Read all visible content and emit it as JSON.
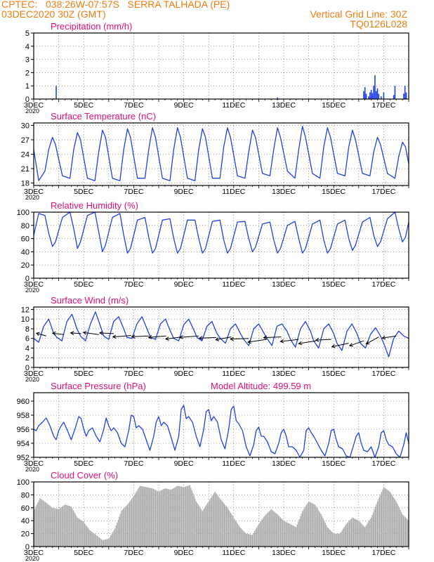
{
  "header": {
    "line1_left": "CPTEC:   038:26W-07:57S   SERRA TALHADA (PE)",
    "line2_left": "03DEC2020 30Z (GMT)",
    "line2_right": "Vertical Grid Line: 30Z",
    "line3_right": "TQ0126L028"
  },
  "colors": {
    "header_text": "#f07c10",
    "panel_title": "#e0107a",
    "series_line": "#2040e8",
    "precip_bars": "#2040e8",
    "cloud_fill": "#a8a8a8",
    "axis": "#000000",
    "grid": "#555555"
  },
  "x_axis": {
    "tick_labels": [
      "3DEC",
      "5DEC",
      "7DEC",
      "9DEC",
      "11DEC",
      "13DEC",
      "15DEC",
      "17DEC"
    ],
    "year_label": "2020",
    "days_span": [
      3,
      18
    ]
  },
  "chart_data": [
    {
      "id": "precip",
      "type": "bar",
      "title": "Precipitation (mm/h)",
      "ylim": [
        0,
        5
      ],
      "yticks": [
        0,
        1,
        2,
        3,
        4,
        5
      ],
      "x": [
        3.8,
        3.9,
        12.75,
        16.2,
        16.25,
        16.3,
        16.4,
        16.45,
        16.5,
        16.55,
        16.6,
        16.65,
        16.7,
        16.75,
        16.8,
        16.9,
        17.0,
        17.4,
        17.45,
        17.8,
        17.85,
        17.9
      ],
      "values": [
        0.05,
        1.0,
        0.12,
        0.6,
        0.9,
        0.4,
        0.2,
        0.5,
        0.7,
        0.45,
        1.0,
        1.8,
        0.6,
        0.8,
        0.4,
        0.2,
        0.5,
        0.3,
        1.0,
        0.4,
        1.0,
        0.5
      ]
    },
    {
      "id": "temp",
      "type": "line",
      "title": "Surface Temperature (nC)",
      "ylim": [
        17.5,
        30.5
      ],
      "yticks": [
        18,
        21,
        24,
        27,
        30
      ],
      "x": [
        3.0,
        3.2,
        3.45,
        3.6,
        3.75,
        3.87,
        4.15,
        4.45,
        4.6,
        4.75,
        4.87,
        5.15,
        5.45,
        5.6,
        5.75,
        5.87,
        6.15,
        6.45,
        6.6,
        6.75,
        6.87,
        7.15,
        7.45,
        7.6,
        7.75,
        7.87,
        8.15,
        8.45,
        8.6,
        8.75,
        8.87,
        9.15,
        9.45,
        9.6,
        9.75,
        9.87,
        10.15,
        10.45,
        10.6,
        10.75,
        10.87,
        11.15,
        11.45,
        11.6,
        11.75,
        11.87,
        12.15,
        12.45,
        12.6,
        12.75,
        12.87,
        13.15,
        13.45,
        13.6,
        13.75,
        13.87,
        14.15,
        14.45,
        14.6,
        14.75,
        14.87,
        15.15,
        15.45,
        15.6,
        15.75,
        15.87,
        16.15,
        16.45,
        16.6,
        16.75,
        16.87,
        17.15,
        17.45,
        17.6,
        17.75,
        17.87,
        18.0
      ],
      "values": [
        25.0,
        18.5,
        20.5,
        25.0,
        27.5,
        26.0,
        19.5,
        19.0,
        25.0,
        28.5,
        27.0,
        19.0,
        18.5,
        24.5,
        29.0,
        27.5,
        19.0,
        18.5,
        25.0,
        29.3,
        27.5,
        19.0,
        19.0,
        25.0,
        29.5,
        27.5,
        19.0,
        18.5,
        25.0,
        29.5,
        27.5,
        19.0,
        18.5,
        25.0,
        29.3,
        27.5,
        19.0,
        19.0,
        25.5,
        29.5,
        27.5,
        19.5,
        19.0,
        24.5,
        29.0,
        27.5,
        20.0,
        19.5,
        25.0,
        29.5,
        27.5,
        20.5,
        19.0,
        25.0,
        29.8,
        27.5,
        20.0,
        19.0,
        25.5,
        29.5,
        27.5,
        20.0,
        19.5,
        25.5,
        29.0,
        27.0,
        20.0,
        19.5,
        24.5,
        27.5,
        26.0,
        20.0,
        19.0,
        23.5,
        26.5,
        25.5,
        22.0
      ]
    },
    {
      "id": "rh",
      "type": "line",
      "title": "Relative Humidity (%)",
      "ylim": [
        0,
        100
      ],
      "yticks": [
        0,
        20,
        40,
        60,
        80,
        100
      ],
      "x": [
        3.0,
        3.2,
        3.45,
        3.6,
        3.75,
        3.87,
        4.15,
        4.45,
        4.6,
        4.75,
        4.87,
        5.15,
        5.45,
        5.6,
        5.75,
        5.87,
        6.15,
        6.45,
        6.6,
        6.75,
        6.87,
        7.15,
        7.45,
        7.6,
        7.75,
        7.87,
        8.15,
        8.45,
        8.6,
        8.75,
        8.87,
        9.15,
        9.45,
        9.6,
        9.75,
        9.87,
        10.15,
        10.45,
        10.6,
        10.75,
        10.87,
        11.15,
        11.45,
        11.6,
        11.75,
        11.87,
        12.15,
        12.45,
        12.6,
        12.75,
        12.87,
        13.15,
        13.45,
        13.6,
        13.75,
        13.87,
        14.15,
        14.45,
        14.6,
        14.75,
        14.87,
        15.15,
        15.45,
        15.6,
        15.75,
        15.87,
        16.15,
        16.45,
        16.6,
        16.75,
        16.87,
        17.15,
        17.45,
        17.6,
        17.75,
        17.87,
        18.0
      ],
      "values": [
        65.0,
        98.0,
        95.0,
        68.0,
        48.0,
        55.0,
        92.0,
        100.0,
        75.0,
        45.0,
        55.0,
        95.0,
        100.0,
        70.0,
        40.0,
        50.0,
        92.0,
        98.0,
        65.0,
        38.0,
        45.0,
        88.0,
        92.0,
        62.0,
        38.0,
        45.0,
        88.0,
        90.0,
        60.0,
        38.0,
        45.0,
        88.0,
        88.0,
        60.0,
        38.0,
        45.0,
        86.0,
        88.0,
        58.0,
        38.0,
        45.0,
        85.0,
        86.0,
        60.0,
        40.0,
        47.0,
        82.0,
        85.0,
        58.0,
        38.0,
        45.0,
        80.0,
        86.0,
        60.0,
        38.0,
        45.0,
        82.0,
        88.0,
        58.0,
        38.0,
        45.0,
        82.0,
        88.0,
        60.0,
        42.0,
        50.0,
        85.0,
        92.0,
        65.0,
        48.0,
        55.0,
        90.0,
        100.0,
        75.0,
        55.0,
        62.0,
        85.0
      ]
    },
    {
      "id": "wind",
      "type": "line",
      "title": "Surface Wind (m/s)",
      "ylim": [
        0,
        12.5
      ],
      "yticks": [
        0,
        2,
        4,
        6,
        8,
        10,
        12
      ],
      "x": [
        3.0,
        3.2,
        3.4,
        3.6,
        3.8,
        3.93,
        4.13,
        4.33,
        4.53,
        4.73,
        4.87,
        5.07,
        5.27,
        5.47,
        5.67,
        5.8,
        6.0,
        6.2,
        6.4,
        6.6,
        6.73,
        6.93,
        7.13,
        7.33,
        7.53,
        7.67,
        7.87,
        8.07,
        8.27,
        8.47,
        8.6,
        8.8,
        9.0,
        9.2,
        9.4,
        9.53,
        9.73,
        9.93,
        10.13,
        10.33,
        10.47,
        10.67,
        10.87,
        11.07,
        11.27,
        11.4,
        11.6,
        11.8,
        12.0,
        12.2,
        12.33,
        12.53,
        12.73,
        12.93,
        13.13,
        13.27,
        13.47,
        13.67,
        13.87,
        14.07,
        14.2,
        14.4,
        14.6,
        14.8,
        15.0,
        15.13,
        15.33,
        15.53,
        15.73,
        15.93,
        16.07,
        16.27,
        16.47,
        16.67,
        16.87,
        17.0,
        17.2,
        17.4,
        17.6,
        17.8,
        18.0
      ],
      "values": [
        6.0,
        5.2,
        8.5,
        10.0,
        7.0,
        6.2,
        5.5,
        9.5,
        11.0,
        8.0,
        6.5,
        5.5,
        9.0,
        11.5,
        8.5,
        6.5,
        5.8,
        9.5,
        10.5,
        8.0,
        6.2,
        6.0,
        9.0,
        10.5,
        8.0,
        6.2,
        5.8,
        9.0,
        10.0,
        7.5,
        6.0,
        5.5,
        8.8,
        10.0,
        7.8,
        6.2,
        5.5,
        8.5,
        9.5,
        7.0,
        6.0,
        5.0,
        8.0,
        9.0,
        7.0,
        5.8,
        4.5,
        8.0,
        9.0,
        7.2,
        6.0,
        4.5,
        8.5,
        9.0,
        7.5,
        5.8,
        4.2,
        8.0,
        9.5,
        7.5,
        5.5,
        4.0,
        8.0,
        9.0,
        7.0,
        5.0,
        3.5,
        7.5,
        9.0,
        7.0,
        5.0,
        4.0,
        6.8,
        8.2,
        6.5,
        5.0,
        2.2,
        6.0,
        7.5,
        6.5,
        6.0
      ],
      "vectors": [
        {
          "x": 3.5,
          "y": 6.5,
          "u": -14,
          "v": -4
        },
        {
          "x": 4.2,
          "y": 6.8,
          "u": -16,
          "v": -2
        },
        {
          "x": 4.9,
          "y": 7.0,
          "u": -15,
          "v": -1
        },
        {
          "x": 5.6,
          "y": 6.8,
          "u": -22,
          "v": -3
        },
        {
          "x": 6.2,
          "y": 7.0,
          "u": -20,
          "v": -1
        },
        {
          "x": 6.9,
          "y": 6.6,
          "u": -26,
          "v": 2
        },
        {
          "x": 7.6,
          "y": 6.5,
          "u": -24,
          "v": 1
        },
        {
          "x": 8.3,
          "y": 6.5,
          "u": -25,
          "v": 2
        },
        {
          "x": 8.9,
          "y": 6.3,
          "u": -22,
          "v": 3
        },
        {
          "x": 9.6,
          "y": 6.5,
          "u": -27,
          "v": 2
        },
        {
          "x": 10.3,
          "y": 6.2,
          "u": -24,
          "v": 1
        },
        {
          "x": 10.9,
          "y": 6.3,
          "u": -22,
          "v": 4
        },
        {
          "x": 11.6,
          "y": 6.0,
          "u": -26,
          "v": 1
        },
        {
          "x": 12.3,
          "y": 5.8,
          "u": -26,
          "v": 4
        },
        {
          "x": 12.9,
          "y": 6.3,
          "u": -25,
          "v": 1
        },
        {
          "x": 13.6,
          "y": 5.8,
          "u": -26,
          "v": 3
        },
        {
          "x": 14.3,
          "y": 5.5,
          "u": -25,
          "v": 4
        },
        {
          "x": 14.9,
          "y": 5.8,
          "u": -22,
          "v": 1
        },
        {
          "x": 15.6,
          "y": 5.0,
          "u": -24,
          "v": 5
        },
        {
          "x": 16.2,
          "y": 5.5,
          "u": -20,
          "v": 7
        },
        {
          "x": 16.8,
          "y": 6.3,
          "u": -18,
          "v": 10
        },
        {
          "x": 17.5,
          "y": 6.5,
          "u": -20,
          "v": 3
        }
      ]
    },
    {
      "id": "pres",
      "type": "line",
      "title": "Surface Pressure (hPa)",
      "annotation": "Model Altitude: 499.59  m",
      "ylim": [
        952,
        961.2
      ],
      "yticks": [
        952,
        954,
        956,
        958,
        960
      ],
      "x": [
        3.0,
        3.1,
        3.2,
        3.35,
        3.5,
        3.65,
        3.8,
        3.9,
        4.0,
        4.1,
        4.2,
        4.35,
        4.5,
        4.65,
        4.8,
        4.9,
        5.0,
        5.1,
        5.2,
        5.35,
        5.5,
        5.65,
        5.8,
        5.9,
        6.0,
        6.1,
        6.2,
        6.35,
        6.5,
        6.65,
        6.8,
        6.9,
        7.0,
        7.1,
        7.2,
        7.35,
        7.5,
        7.65,
        7.8,
        7.9,
        8.0,
        8.1,
        8.2,
        8.35,
        8.5,
        8.65,
        8.8,
        8.9,
        9.0,
        9.1,
        9.2,
        9.35,
        9.5,
        9.65,
        9.8,
        9.9,
        10.0,
        10.1,
        10.2,
        10.35,
        10.5,
        10.65,
        10.8,
        10.9,
        11.0,
        11.1,
        11.2,
        11.35,
        11.5,
        11.65,
        11.8,
        11.9,
        12.0,
        12.1,
        12.2,
        12.35,
        12.5,
        12.65,
        12.8,
        12.9,
        13.0,
        13.1,
        13.2,
        13.35,
        13.5,
        13.65,
        13.8,
        13.9,
        14.0,
        14.1,
        14.2,
        14.35,
        14.5,
        14.65,
        14.8,
        14.9,
        15.0,
        15.1,
        15.2,
        15.35,
        15.5,
        15.65,
        15.8,
        15.9,
        16.0,
        16.1,
        16.2,
        16.35,
        16.5,
        16.65,
        16.8,
        16.9,
        17.0,
        17.1,
        17.2,
        17.35,
        17.5,
        17.65,
        17.8,
        17.9,
        18.0
      ],
      "values": [
        956.0,
        955.8,
        956.5,
        957.0,
        957.6,
        956.5,
        955.0,
        954.5,
        955.8,
        956.5,
        957.0,
        955.8,
        954.5,
        956.0,
        957.8,
        957.5,
        956.0,
        955.0,
        955.8,
        956.2,
        955.0,
        954.2,
        956.0,
        957.6,
        956.5,
        955.8,
        956.2,
        955.5,
        954.0,
        953.5,
        955.8,
        958.0,
        957.8,
        956.2,
        956.5,
        956.0,
        954.5,
        953.0,
        955.0,
        957.0,
        957.8,
        956.5,
        957.0,
        956.5,
        954.8,
        953.0,
        955.0,
        958.8,
        959.4,
        957.5,
        957.8,
        957.0,
        955.0,
        953.5,
        956.0,
        958.5,
        958.8,
        957.2,
        957.8,
        957.0,
        954.5,
        953.2,
        956.0,
        958.8,
        959.3,
        957.2,
        956.8,
        955.8,
        953.5,
        952.2,
        953.8,
        955.8,
        956.3,
        955.0,
        955.0,
        954.2,
        952.8,
        952.5,
        954.0,
        955.5,
        956.0,
        955.0,
        953.5,
        953.5,
        953.0,
        952.0,
        953.0,
        955.8,
        956.2,
        955.5,
        955.0,
        954.0,
        953.0,
        952.2,
        954.0,
        955.8,
        956.0,
        954.5,
        953.5,
        953.2,
        952.2,
        952.0,
        953.8,
        955.0,
        955.5,
        954.0,
        953.0,
        952.8,
        953.5,
        952.0,
        953.5,
        955.5,
        955.8,
        954.5,
        953.8,
        953.5,
        952.5,
        952.0,
        953.8,
        955.5,
        954.0
      ]
    },
    {
      "id": "cloud",
      "type": "area",
      "title": "Cloud Cover (%)",
      "ylim": [
        0,
        100
      ],
      "yticks": [
        0,
        20,
        40,
        60,
        80,
        100
      ],
      "x": [
        3.0,
        3.25,
        3.5,
        3.75,
        4.0,
        4.25,
        4.5,
        4.75,
        5.0,
        5.25,
        5.5,
        5.75,
        6.0,
        6.25,
        6.5,
        6.75,
        7.0,
        7.25,
        7.5,
        7.75,
        8.0,
        8.25,
        8.5,
        8.75,
        9.0,
        9.25,
        9.5,
        9.75,
        10.0,
        10.25,
        10.5,
        10.75,
        11.0,
        11.25,
        11.5,
        11.75,
        12.0,
        12.25,
        12.5,
        12.75,
        13.0,
        13.25,
        13.5,
        13.75,
        14.0,
        14.25,
        14.5,
        14.75,
        15.0,
        15.25,
        15.5,
        15.75,
        16.0,
        16.25,
        16.5,
        16.75,
        17.0,
        17.25,
        17.5,
        17.75,
        18.0
      ],
      "values": [
        55.0,
        75.0,
        68.0,
        60.0,
        58.0,
        65.0,
        62.0,
        45.0,
        38.0,
        25.0,
        18.0,
        10.0,
        12.0,
        28.0,
        55.0,
        65.0,
        78.0,
        94.0,
        92.0,
        90.0,
        85.0,
        90.0,
        88.0,
        94.0,
        92.0,
        95.0,
        70.0,
        55.0,
        70.0,
        85.0,
        72.0,
        60.0,
        45.0,
        30.0,
        20.0,
        18.0,
        35.0,
        48.0,
        58.0,
        50.0,
        40.0,
        35.0,
        30.0,
        55.0,
        70.0,
        65.0,
        50.0,
        30.0,
        20.0,
        20.0,
        35.0,
        45.0,
        40.0,
        30.0,
        45.0,
        70.0,
        92.0,
        85.0,
        70.0,
        50.0,
        40.0
      ]
    }
  ]
}
